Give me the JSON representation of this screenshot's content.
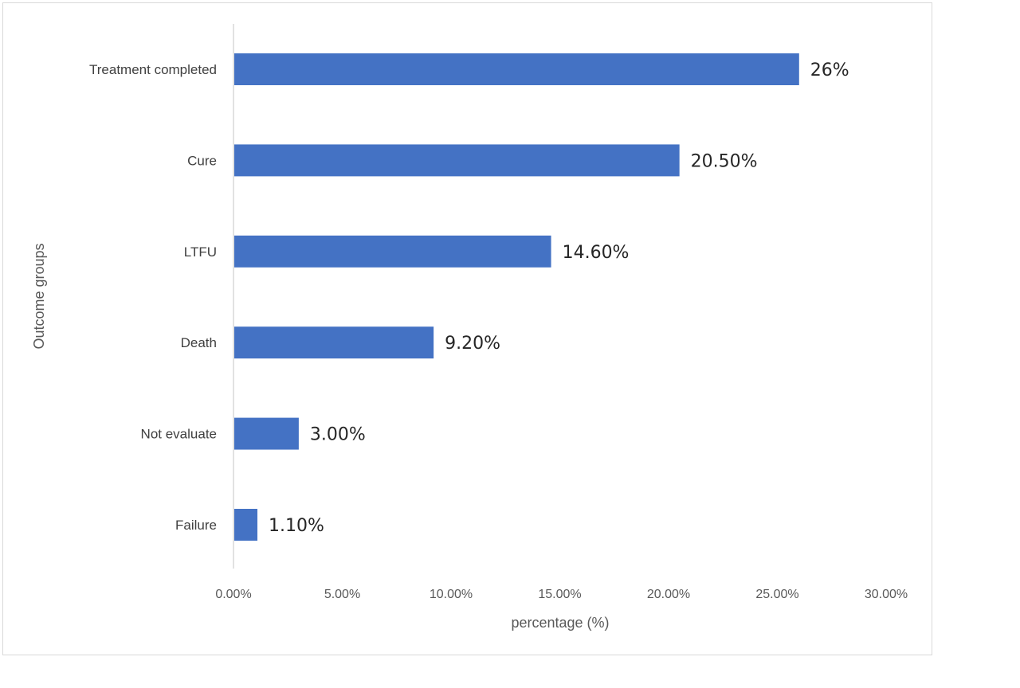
{
  "chart_data": {
    "type": "bar",
    "orientation": "horizontal",
    "categories": [
      "Treatment completed",
      "Cure",
      "LTFU",
      "Death",
      "Not evaluate",
      "Failure"
    ],
    "values": [
      26,
      20.5,
      14.6,
      9.2,
      3.0,
      1.1
    ],
    "data_labels": [
      "26%",
      "20.50%",
      "14.60%",
      "9.20%",
      "3.00%",
      "1.10%"
    ],
    "xlabel": "percentage (%)",
    "ylabel": "Outcome groups",
    "xlim": [
      0,
      30
    ],
    "xticks": [
      0,
      5,
      10,
      15,
      20,
      25,
      30
    ],
    "xtick_labels": [
      "0.00%",
      "5.00%",
      "10.00%",
      "15.00%",
      "20.00%",
      "25.00%",
      "30.00%"
    ],
    "grid": false,
    "legend": "none",
    "bar_color": "#4472C4"
  }
}
